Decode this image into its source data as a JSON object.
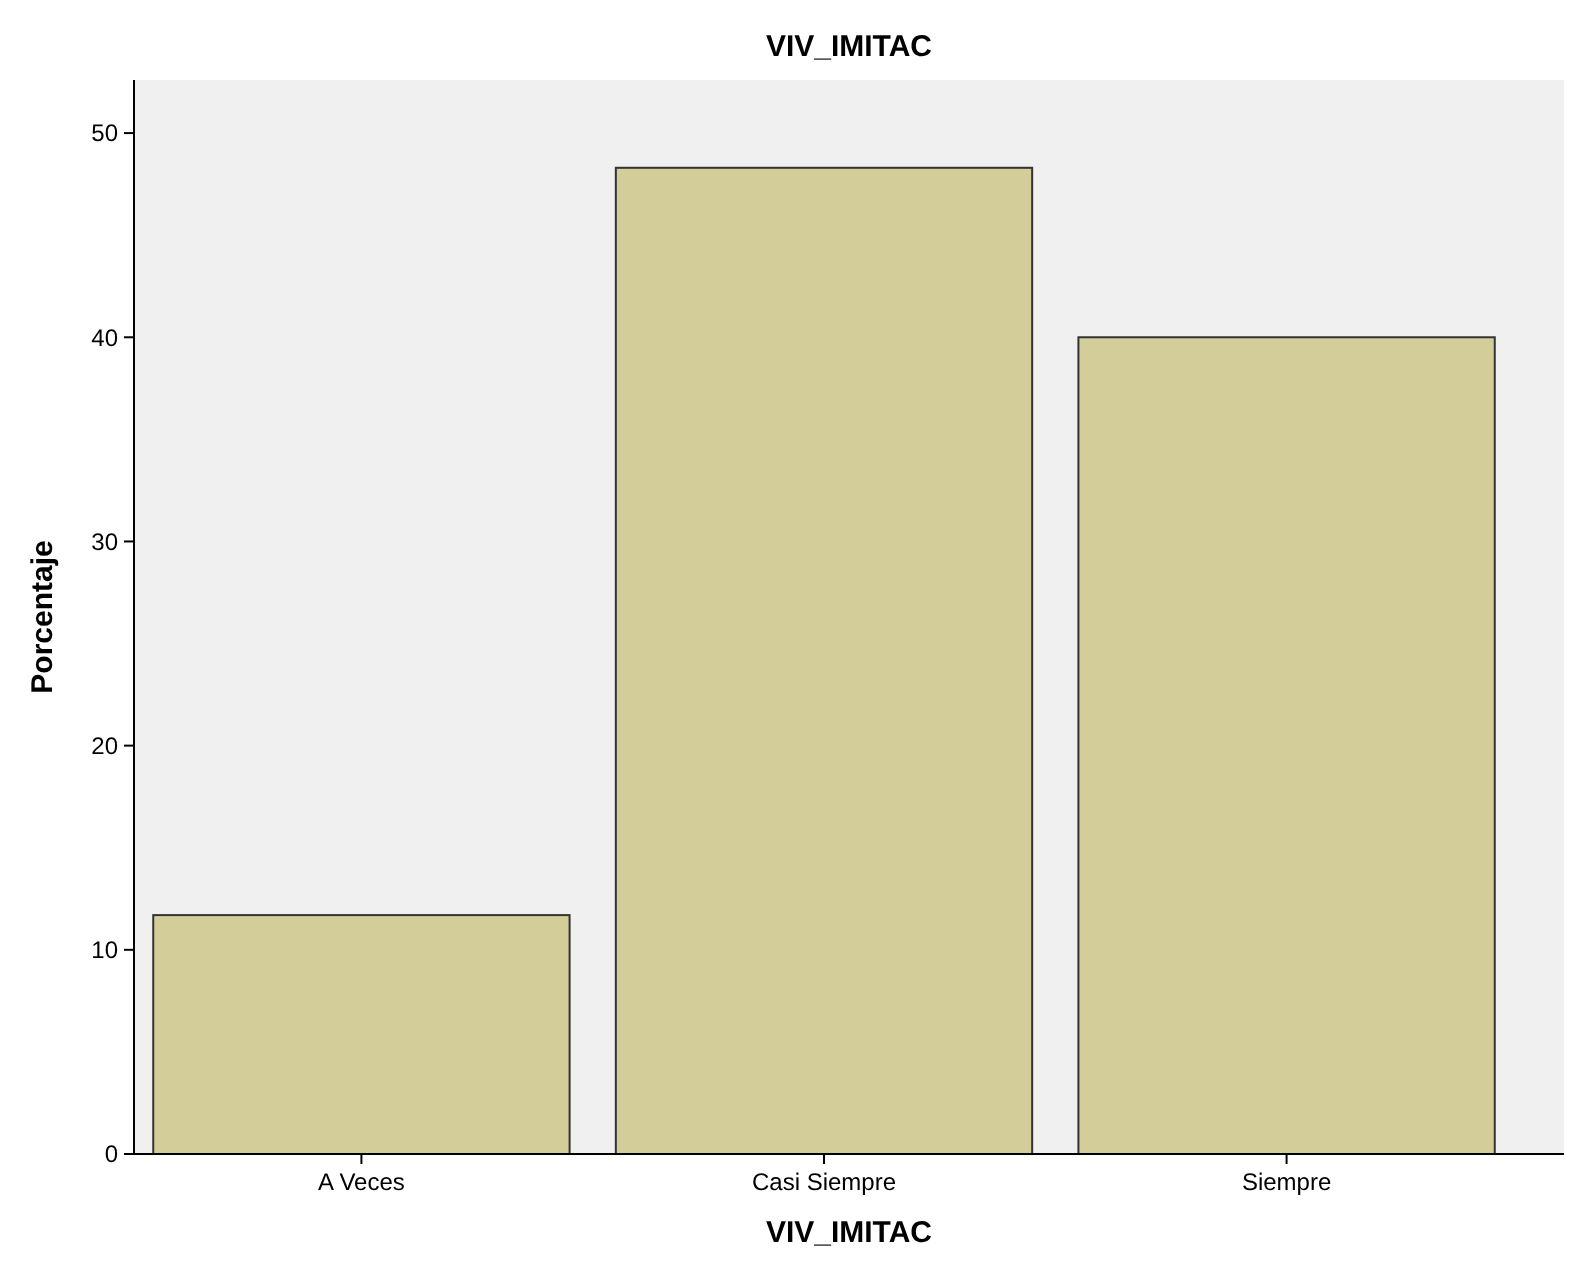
{
  "chart_data": {
    "type": "bar",
    "title": "VIV_IMITAC",
    "xlabel": "VIV_IMITAC",
    "ylabel": "Porcentaje",
    "categories": [
      "A Veces",
      "Casi Siempre",
      "Siempre"
    ],
    "values": [
      11.7,
      48.3,
      40.0
    ],
    "color": "#d3ce99",
    "ylim": [
      0,
      52.6
    ],
    "yticks": [
      0,
      10,
      20,
      30,
      40,
      50
    ],
    "grid": false
  }
}
